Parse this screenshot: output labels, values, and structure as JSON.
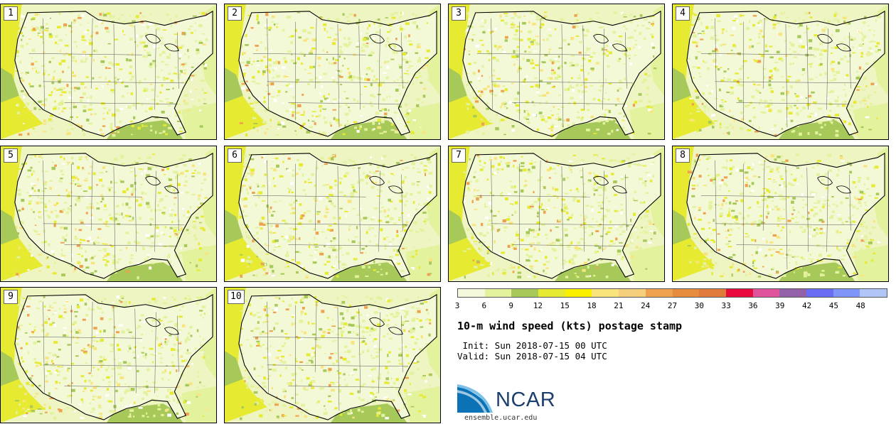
{
  "panels": [
    "1",
    "2",
    "3",
    "4",
    "5",
    "6",
    "7",
    "8",
    "9",
    "10"
  ],
  "colorbar": {
    "colors": [
      "#f5f9dc",
      "#e3f29c",
      "#a7c95a",
      "#e6ea31",
      "#faf000",
      "#f9e47c",
      "#f6cf7c",
      "#eea24f",
      "#e58c3d",
      "#df7a3a",
      "#ea0b3d",
      "#e0549c",
      "#9361a7",
      "#6a6ef3",
      "#7f95f7",
      "#b1c6f6"
    ],
    "tick_labels": [
      "3",
      "6",
      "9",
      "12",
      "15",
      "18",
      "21",
      "24",
      "27",
      "30",
      "33",
      "36",
      "39",
      "42",
      "45",
      "48"
    ]
  },
  "title": "10-m wind speed (kts) postage stamp",
  "init": " Init: Sun 2018-07-15 00 UTC",
  "valid": "Valid: Sun 2018-07-15 04 UTC",
  "logo": {
    "text": "NCAR",
    "url": "ensemble.ucar.edu",
    "color": "#1c3f6e"
  }
}
